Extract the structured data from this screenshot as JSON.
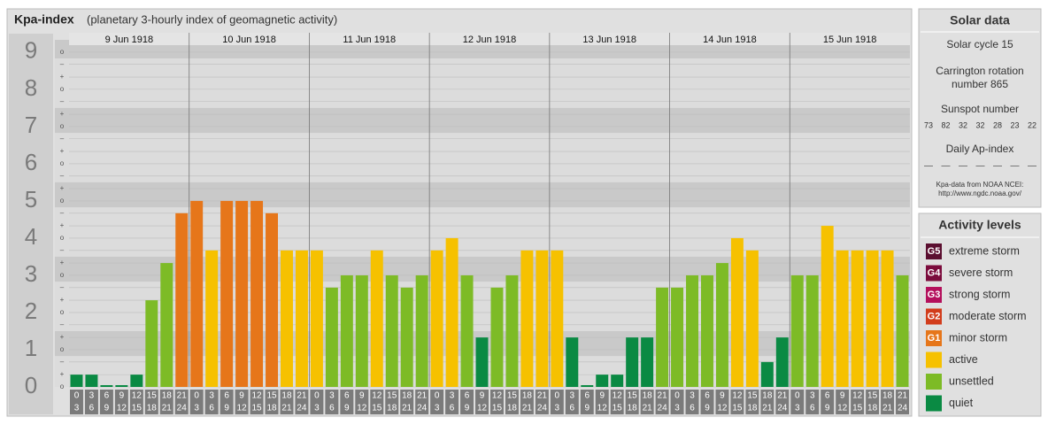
{
  "chart_data": {
    "type": "bar",
    "title": "Kpa-index",
    "subtitle": "(planetary 3-hourly index of geomagnetic activity)",
    "days": [
      "9 Jun 1918",
      "10 Jun 1918",
      "11 Jun 1918",
      "12 Jun 1918",
      "13 Jun 1918",
      "14 Jun 1918",
      "15 Jun 1918"
    ],
    "hours_from": [
      0,
      3,
      6,
      9,
      12,
      15,
      18,
      21
    ],
    "hours_to": [
      3,
      6,
      9,
      12,
      15,
      18,
      21,
      24
    ],
    "values": [
      0.33,
      0.33,
      0,
      0,
      0.33,
      2.33,
      3.33,
      4.67,
      5,
      3.67,
      5,
      5,
      5,
      4.67,
      3.67,
      3.67,
      3.67,
      2.67,
      3,
      3,
      3.67,
      3,
      2.67,
      3,
      3.67,
      4,
      3,
      1.33,
      2.67,
      3,
      3.67,
      3.67,
      3.67,
      1.33,
      0,
      0.33,
      0.33,
      1.33,
      1.33,
      2.67,
      2.67,
      3,
      3,
      3.33,
      4,
      3.67,
      0.67,
      1.33,
      3,
      3,
      4.33,
      3.67,
      3.67,
      3.67,
      3.67,
      3
    ],
    "colors": [
      "#0a8a43",
      "#0a8a43",
      "#0a8a43",
      "#0a8a43",
      "#0a8a43",
      "#7dbb26",
      "#7dbb26",
      "#e6761a",
      "#e6761a",
      "#f6c100",
      "#e6761a",
      "#e6761a",
      "#e6761a",
      "#e6761a",
      "#f6c100",
      "#f6c100",
      "#f6c100",
      "#7dbb26",
      "#7dbb26",
      "#7dbb26",
      "#f6c100",
      "#7dbb26",
      "#7dbb26",
      "#7dbb26",
      "#f6c100",
      "#f6c100",
      "#7dbb26",
      "#0a8a43",
      "#7dbb26",
      "#7dbb26",
      "#f6c100",
      "#f6c100",
      "#f6c100",
      "#0a8a43",
      "#0a8a43",
      "#0a8a43",
      "#0a8a43",
      "#0a8a43",
      "#0a8a43",
      "#7dbb26",
      "#7dbb26",
      "#7dbb26",
      "#7dbb26",
      "#7dbb26",
      "#f6c100",
      "#f6c100",
      "#0a8a43",
      "#0a8a43",
      "#7dbb26",
      "#7dbb26",
      "#f6c100",
      "#f6c100",
      "#f6c100",
      "#f6c100",
      "#f6c100",
      "#7dbb26"
    ],
    "ylim": [
      0,
      9.33
    ],
    "yticks": [
      0,
      1,
      2,
      3,
      4,
      5,
      6,
      7,
      8,
      9
    ],
    "yminor_ticks": [
      {
        "value": 0,
        "label": "o"
      },
      {
        "value": 0.33,
        "label": "+"
      },
      {
        "value": 0.67,
        "label": "–"
      },
      {
        "value": 1,
        "label": "o"
      },
      {
        "value": 1.33,
        "label": "+"
      },
      {
        "value": 1.67,
        "label": "–"
      },
      {
        "value": 2,
        "label": "o"
      },
      {
        "value": 2.33,
        "label": "+"
      },
      {
        "value": 2.67,
        "label": "–"
      },
      {
        "value": 3,
        "label": "o"
      },
      {
        "value": 3.33,
        "label": "+"
      },
      {
        "value": 3.67,
        "label": "–"
      },
      {
        "value": 4,
        "label": "o"
      },
      {
        "value": 4.33,
        "label": "+"
      },
      {
        "value": 4.67,
        "label": "–"
      },
      {
        "value": 5,
        "label": "o"
      },
      {
        "value": 5.33,
        "label": "+"
      },
      {
        "value": 5.67,
        "label": "–"
      },
      {
        "value": 6,
        "label": "o"
      },
      {
        "value": 6.33,
        "label": "+"
      },
      {
        "value": 6.67,
        "label": "–"
      },
      {
        "value": 7,
        "label": "o"
      },
      {
        "value": 7.33,
        "label": "+"
      },
      {
        "value": 7.67,
        "label": "–"
      },
      {
        "value": 8,
        "label": "o"
      },
      {
        "value": 8.33,
        "label": "+"
      },
      {
        "value": 8.67,
        "label": "–"
      },
      {
        "value": 9,
        "label": "o"
      }
    ]
  },
  "solar_data": {
    "title": "Solar data",
    "cycle": "Solar cycle 15",
    "carrington": [
      "Carrington rotation",
      "number 865"
    ],
    "sunspot_label": "Sunspot number",
    "sunspots": [
      73,
      82,
      32,
      32,
      28,
      23,
      22
    ],
    "ap_label": "Daily Ap-index",
    "ap": [
      "––",
      "––",
      "––",
      "––",
      "––",
      "––",
      "––"
    ],
    "source": [
      "Kpa-data from NOAA NCEI:",
      "http://www.ngdc.noaa.gov/"
    ]
  },
  "activity_levels": {
    "title": "Activity levels",
    "items": [
      {
        "badge": "G5",
        "label": "extreme storm",
        "color": "#5b0f30"
      },
      {
        "badge": "G4",
        "label": "severe storm",
        "color": "#7b0b3c"
      },
      {
        "badge": "G3",
        "label": "strong storm",
        "color": "#b4105c"
      },
      {
        "badge": "G2",
        "label": "moderate storm",
        "color": "#d23d1c"
      },
      {
        "badge": "G1",
        "label": "minor storm",
        "color": "#e6761a"
      },
      {
        "label": "active",
        "color": "#f6c100"
      },
      {
        "label": "unsettled",
        "color": "#7dbb26"
      },
      {
        "label": "quiet",
        "color": "#0a8a43"
      }
    ]
  }
}
